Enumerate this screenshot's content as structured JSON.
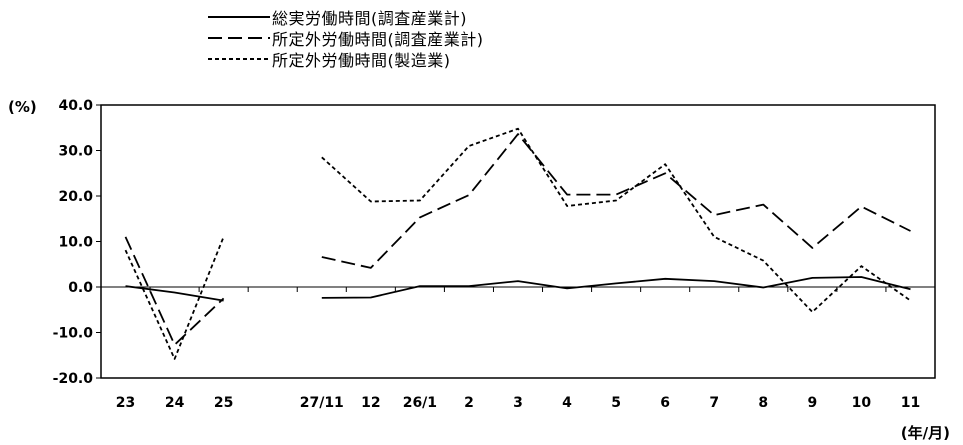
{
  "chart_data": {
    "type": "line",
    "title": "",
    "ylabel": "(%)",
    "xlabel": "(年/月)",
    "ylim": [
      -20,
      40
    ],
    "yticks": [
      "40.0",
      "30.0",
      "20.0",
      "10.0",
      "0.0",
      "-10.0",
      "-20.0"
    ],
    "categories": [
      "23",
      "24",
      "25",
      "",
      "27/11",
      "12",
      "26/1",
      "2",
      "3",
      "4",
      "5",
      "6",
      "7",
      "8",
      "9",
      "10",
      "11"
    ],
    "grid": false,
    "legend_position": "top",
    "series": [
      {
        "name": "総実労働時間(調査産業計)",
        "style": "solid",
        "color": "#000000",
        "values": [
          0.2,
          -1.2,
          -3.0,
          null,
          -2.4,
          -2.3,
          0.2,
          0.2,
          1.3,
          -0.3,
          0.8,
          1.8,
          1.3,
          -0.1,
          2.0,
          2.2,
          -0.5
        ]
      },
      {
        "name": "所定外労働時間(調査産業計)",
        "style": "long-dash",
        "color": "#000000",
        "values": [
          11.0,
          -12.7,
          -2.5,
          null,
          6.6,
          4.2,
          15.3,
          20.2,
          33.6,
          20.3,
          20.3,
          25.0,
          15.8,
          18.1,
          8.6,
          17.7,
          12.3
        ]
      },
      {
        "name": "所定外労働時間(製造業)",
        "style": "short-dash",
        "color": "#000000",
        "values": [
          8.1,
          -15.8,
          11.0,
          null,
          28.5,
          18.8,
          19.0,
          31.0,
          34.8,
          17.8,
          19.0,
          27.0,
          11.0,
          5.8,
          -5.5,
          4.6,
          -3.0
        ]
      }
    ]
  }
}
